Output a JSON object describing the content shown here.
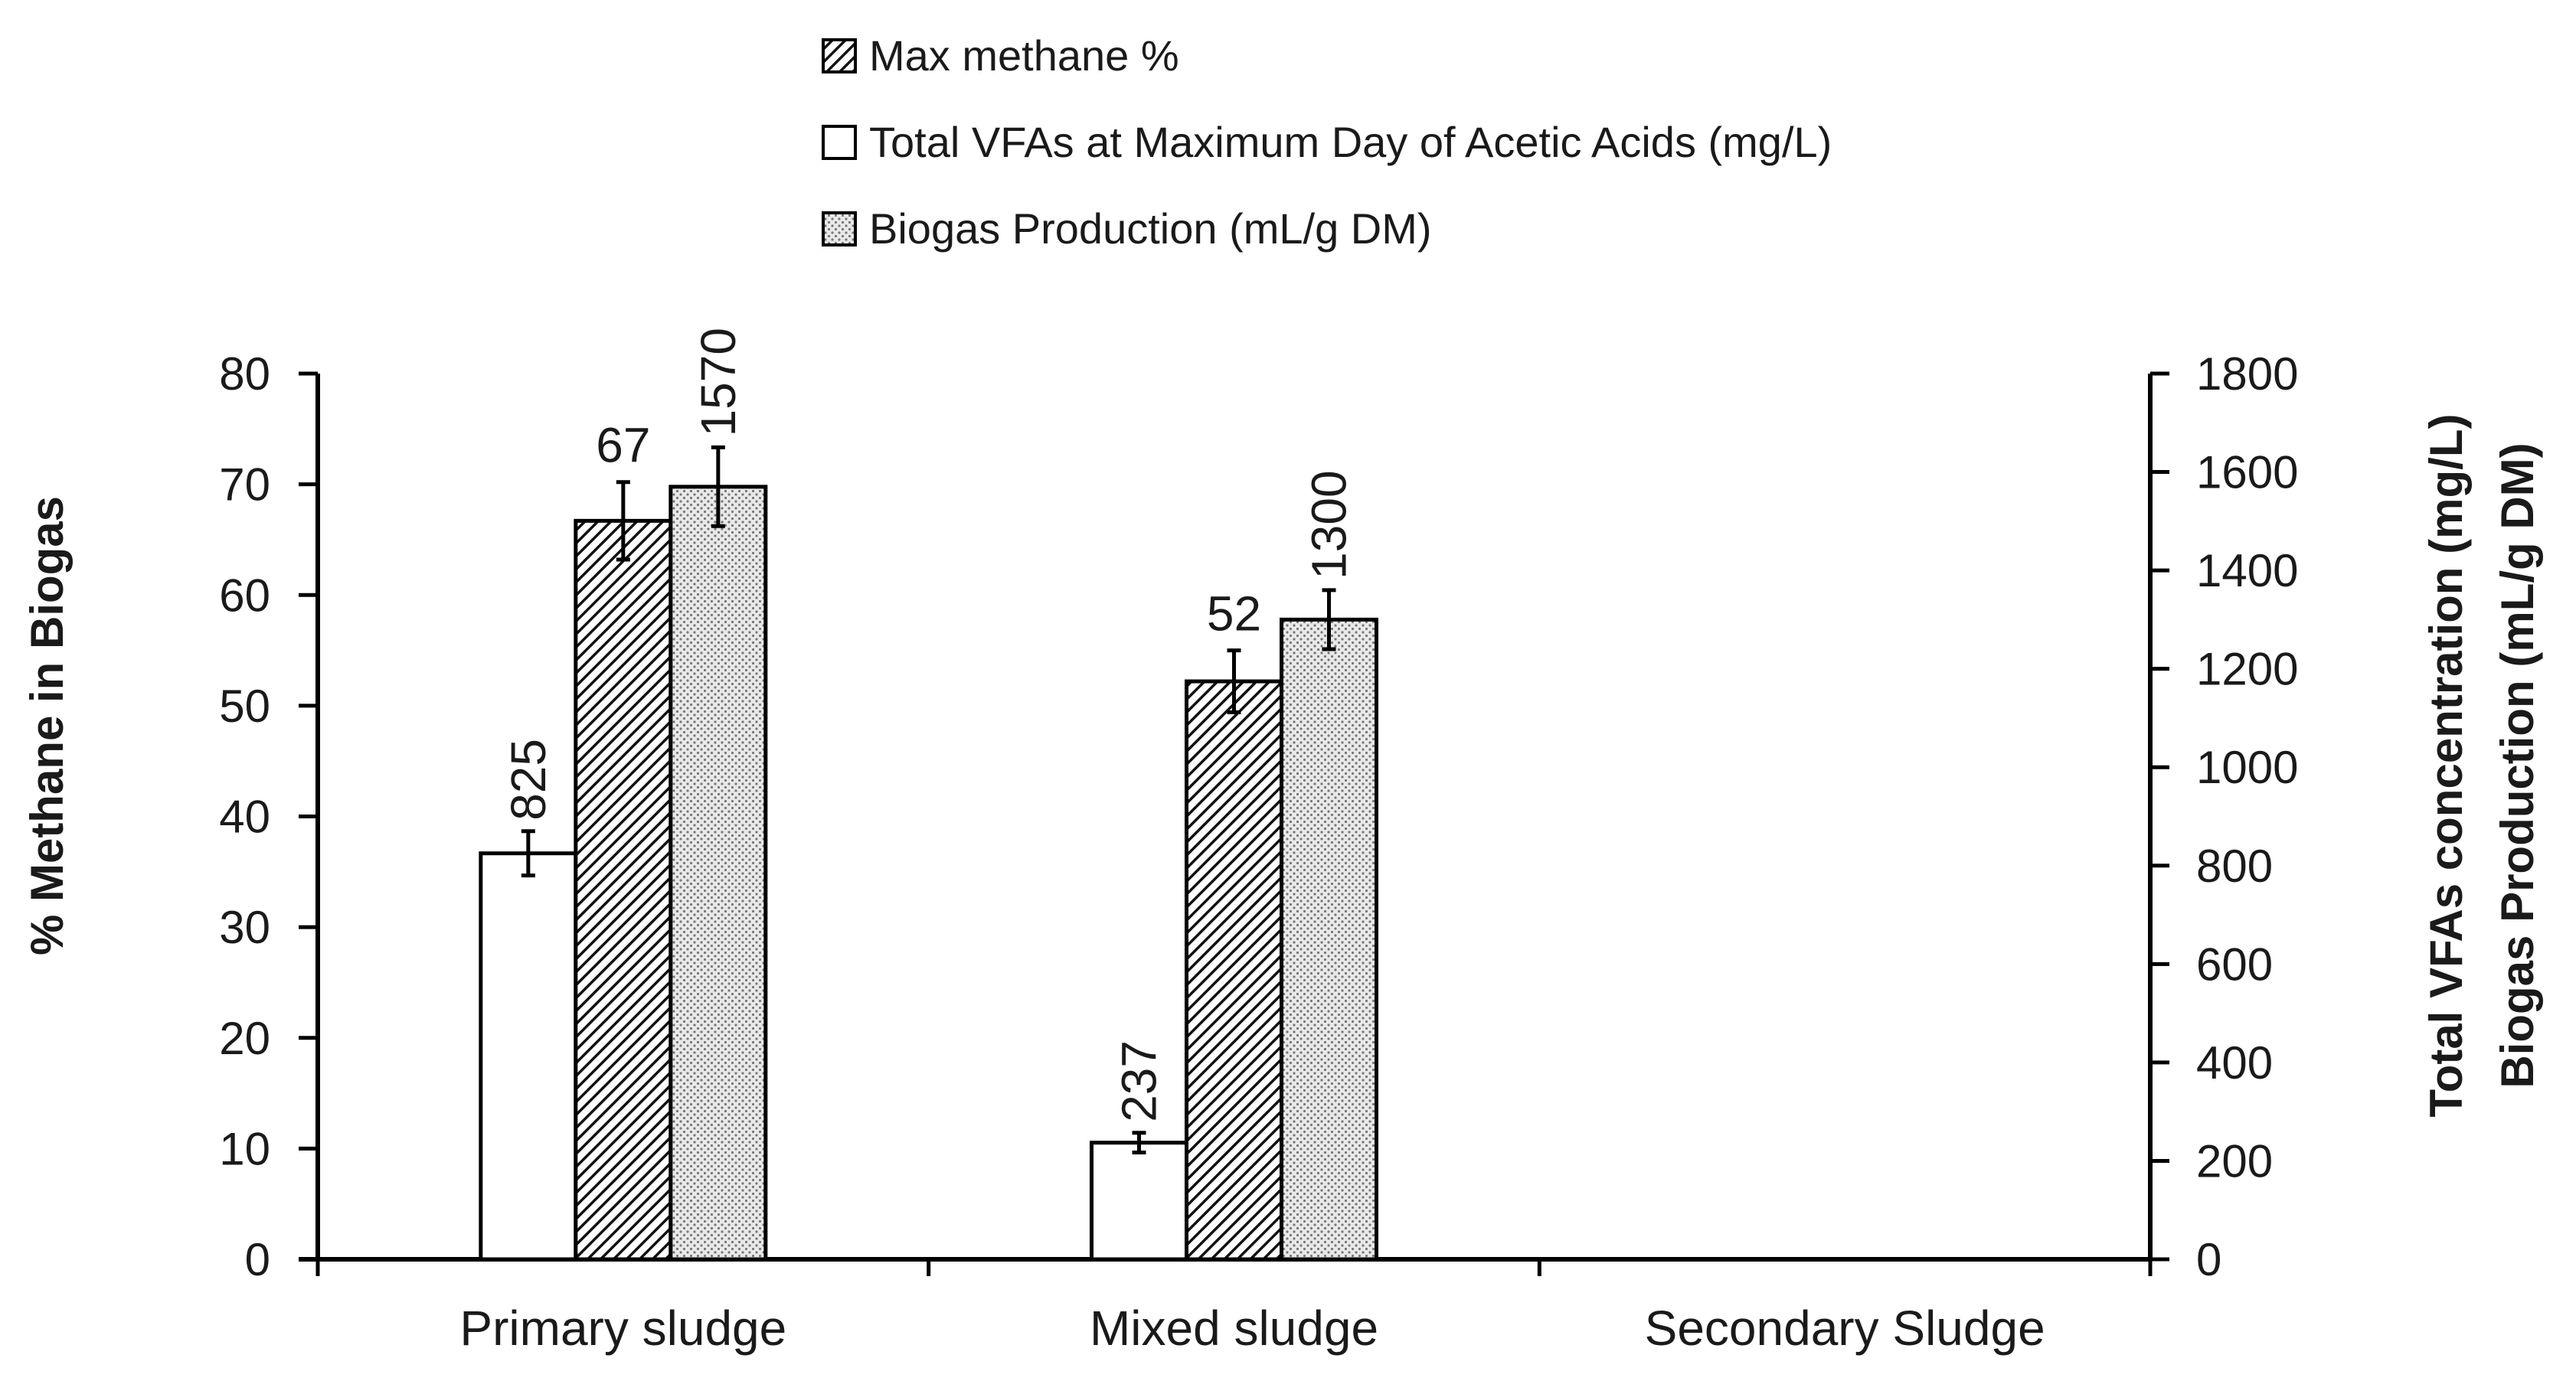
{
  "chart_data": {
    "type": "bar",
    "categories": [
      "Primary sludge",
      "Mixed sludge",
      "Secondary Sludge"
    ],
    "legend": [
      {
        "key": "methane",
        "name": "Max methane %",
        "pattern": "diagonal-hatch",
        "axis": "left"
      },
      {
        "key": "vfa",
        "name": "Total VFAs at Maximum Day of Acetic Acids (mg/L)",
        "pattern": "white",
        "axis": "right"
      },
      {
        "key": "biogas",
        "name": "Biogas Production (mL/g DM)",
        "pattern": "dotted",
        "axis": "right"
      }
    ],
    "series": [
      {
        "key": "vfa",
        "name": "Total VFAs at Maximum Day of Acetic Acids (mg/L)",
        "axis": "right",
        "values": [
          825,
          237,
          null
        ],
        "errors": [
          45,
          20,
          null
        ],
        "labels": [
          "825",
          "237",
          ""
        ]
      },
      {
        "key": "methane",
        "name": "Max methane %",
        "axis": "left",
        "values": [
          66.7,
          52.2,
          null
        ],
        "errors": [
          3.5,
          2.8,
          null
        ],
        "labels": [
          "67",
          "52",
          ""
        ]
      },
      {
        "key": "biogas",
        "name": "Biogas Production (mL/g DM)",
        "axis": "right",
        "values": [
          1570,
          1300,
          null
        ],
        "errors": [
          80,
          60,
          null
        ],
        "labels": [
          "1570",
          "1300",
          ""
        ]
      }
    ],
    "y_left": {
      "label": "% Methane in Biogas",
      "min": 0,
      "max": 80,
      "ticks": [
        0,
        10,
        20,
        30,
        40,
        50,
        60,
        70,
        80
      ],
      "tick_labels": [
        "0",
        "10",
        "20",
        "30",
        "40",
        "50",
        "60",
        "70",
        "80"
      ]
    },
    "y_right": {
      "label_line1": "Total VFAs concentration (mg/L)",
      "label_line2": "Biogas Production (mL/g DM)",
      "min": 0,
      "max": 1800,
      "ticks": [
        0,
        200,
        400,
        600,
        800,
        1000,
        1200,
        1400,
        1600,
        1800
      ],
      "tick_labels": [
        "0",
        "200",
        "400",
        "600",
        "800",
        "1000",
        "1200",
        "1400",
        "1600",
        "1800"
      ]
    },
    "legend_position": "top-center",
    "grid": false
  }
}
